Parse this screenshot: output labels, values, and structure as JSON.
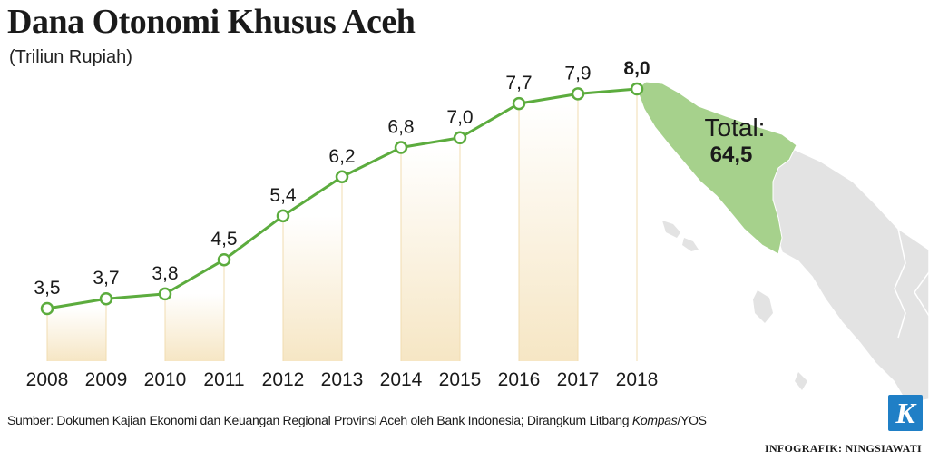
{
  "header": {
    "title": "Dana Otonomi Khusus Aceh",
    "subtitle": "(Triliun Rupiah)"
  },
  "chart_data": {
    "type": "line",
    "x": [
      "2008",
      "2009",
      "2010",
      "2011",
      "2012",
      "2013",
      "2014",
      "2015",
      "2016",
      "2017",
      "2018"
    ],
    "values": [
      3.5,
      3.7,
      3.8,
      4.5,
      5.4,
      6.2,
      6.8,
      7.0,
      7.7,
      7.9,
      8.0
    ],
    "data_labels": [
      "3,5",
      "3,7",
      "3,8",
      "4,5",
      "5,4",
      "6,2",
      "6,8",
      "7,0",
      "7,7",
      "7,9",
      "8,0"
    ],
    "title": "Dana Otonomi Khusus Aceh",
    "ylabel": "(Triliun Rupiah)",
    "xlabel": "",
    "grid": false
  },
  "total": {
    "label": "Total:",
    "value": "64,5"
  },
  "footer": {
    "source_prefix": "Sumber: Dokumen Kajian Ekonomi dan Keuangan Regional Provinsi Aceh oleh Bank Indonesia; Dirangkum Litbang ",
    "source_italic": "Kompas",
    "source_suffix": "/YOS",
    "credit": "INFOGRAFIK: NINGSIAWATI",
    "logo_letter": "K"
  },
  "colors": {
    "line": "#5cac3e",
    "map_aceh": "#a6d18c",
    "map_land": "#e3e3e3",
    "column_band": "#f6e6c4"
  }
}
